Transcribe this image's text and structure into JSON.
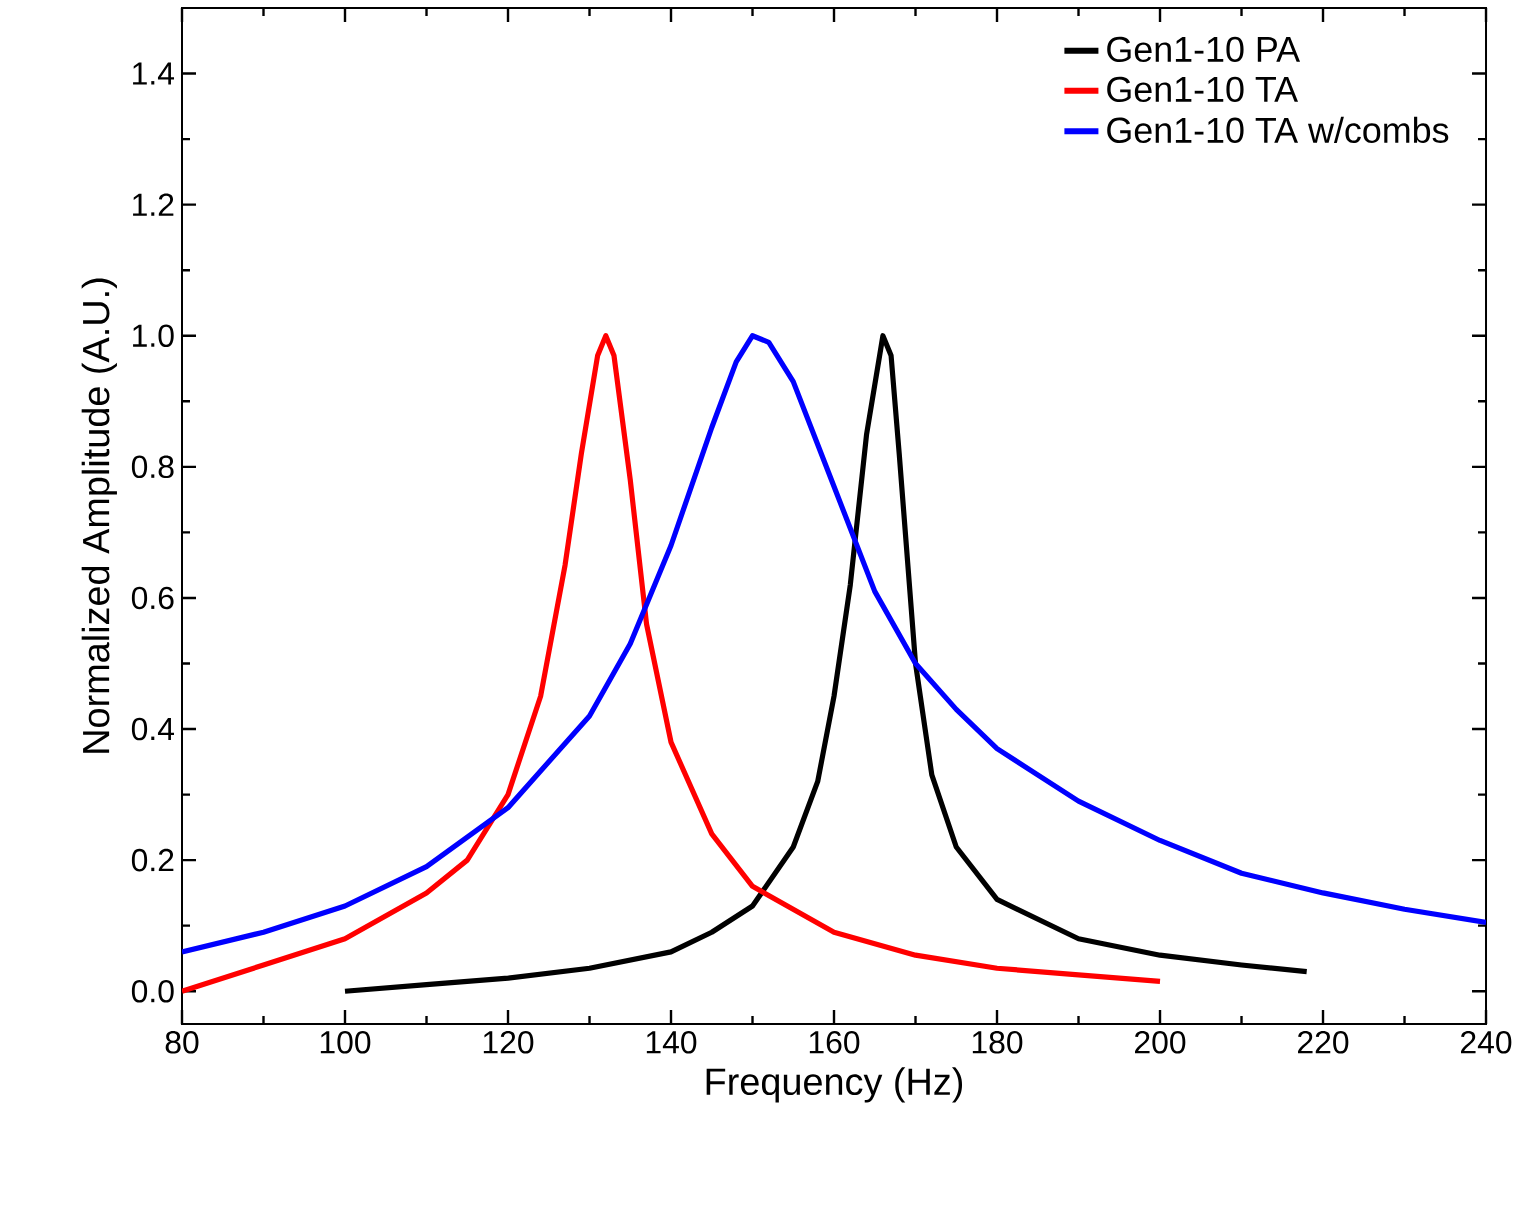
{
  "chart_data": {
    "type": "line",
    "xlabel": "Frequency (Hz)",
    "ylabel": "Normalized Amplitude (A.U.)",
    "xlim": [
      80,
      240
    ],
    "xticks": [
      80,
      100,
      120,
      140,
      160,
      180,
      200,
      220,
      240
    ],
    "ylim": [
      -0.05,
      1.5
    ],
    "yticks": [
      {
        "value": 0.0,
        "label": "0.0"
      },
      {
        "value": 0.2,
        "label": "0.2"
      },
      {
        "value": 0.4,
        "label": "0.4"
      },
      {
        "value": 0.6,
        "label": "0.6"
      },
      {
        "value": 0.8,
        "label": "0.8"
      },
      {
        "value": 1.0,
        "label": "1.0"
      },
      {
        "value": 1.2,
        "label": "1.2"
      },
      {
        "value": 1.4,
        "label": "1.4"
      }
    ],
    "legend": "top right",
    "grid": false,
    "marker": "none",
    "line_style": "solid",
    "series": [
      {
        "name": "Gen1-10 PA",
        "color": "#000000",
        "x": [
          100,
          110,
          120,
          130,
          140,
          145,
          150,
          155,
          158,
          160,
          162,
          164,
          166,
          167,
          168,
          170,
          172,
          175,
          180,
          190,
          200,
          210,
          218
        ],
        "values": [
          0.0,
          0.01,
          0.02,
          0.035,
          0.06,
          0.09,
          0.13,
          0.22,
          0.32,
          0.45,
          0.62,
          0.85,
          1.0,
          0.97,
          0.82,
          0.5,
          0.33,
          0.22,
          0.14,
          0.08,
          0.055,
          0.04,
          0.03
        ]
      },
      {
        "name": "Gen1-10 TA",
        "color": "#ff0000",
        "x": [
          80,
          90,
          100,
          110,
          115,
          120,
          124,
          127,
          129,
          131,
          132,
          133,
          135,
          137,
          140,
          145,
          150,
          160,
          170,
          180,
          190,
          200
        ],
        "values": [
          0.0,
          0.04,
          0.08,
          0.15,
          0.2,
          0.3,
          0.45,
          0.65,
          0.82,
          0.97,
          1.0,
          0.97,
          0.78,
          0.56,
          0.38,
          0.24,
          0.16,
          0.09,
          0.055,
          0.035,
          0.025,
          0.015
        ]
      },
      {
        "name": "Gen1-10 TA w/combs",
        "color": "#0000ff",
        "x": [
          80,
          90,
          100,
          110,
          120,
          130,
          135,
          140,
          145,
          148,
          150,
          152,
          155,
          160,
          165,
          170,
          175,
          180,
          190,
          200,
          210,
          220,
          230,
          240
        ],
        "values": [
          0.06,
          0.09,
          0.13,
          0.19,
          0.28,
          0.42,
          0.53,
          0.68,
          0.86,
          0.96,
          1.0,
          0.99,
          0.93,
          0.77,
          0.61,
          0.5,
          0.43,
          0.37,
          0.29,
          0.23,
          0.18,
          0.15,
          0.125,
          0.105
        ]
      }
    ]
  }
}
